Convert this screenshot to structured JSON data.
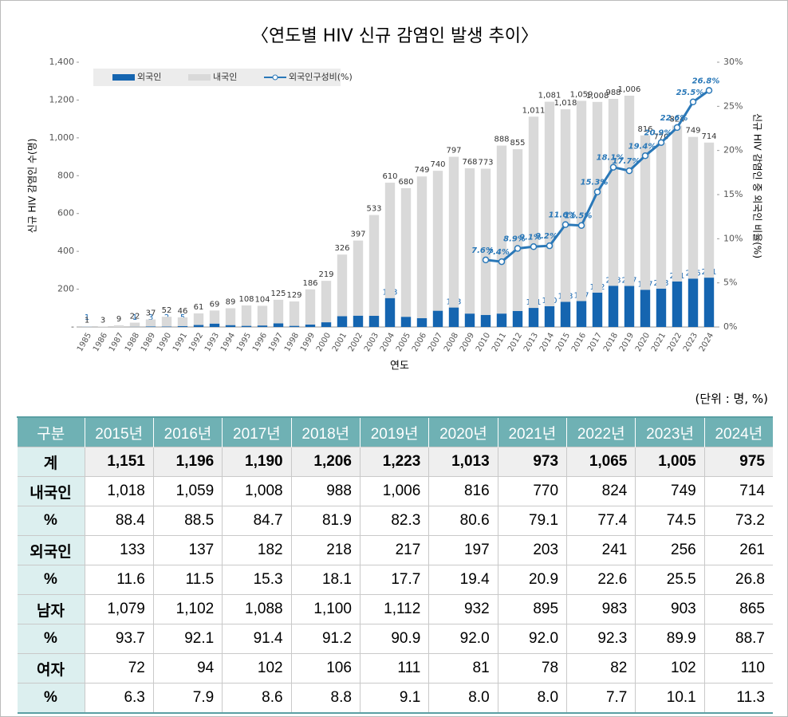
{
  "chart_data": {
    "type": "bar",
    "title": "〈연도별 HIV 신규 감염인 발생 추이〉",
    "x_label": "연도",
    "y_label": "신규 HIV 감염인 수(명)",
    "y2_label": "신규 HIV 감염인 중 외국인 비율(%)",
    "categories": [
      1985,
      1986,
      1987,
      1988,
      1989,
      1990,
      1991,
      1992,
      1993,
      1994,
      1995,
      1996,
      1997,
      1998,
      1999,
      2000,
      2001,
      2002,
      2003,
      2004,
      2005,
      2006,
      2007,
      2008,
      2009,
      2010,
      2011,
      2012,
      2013,
      2014,
      2015,
      2016,
      2017,
      2018,
      2019,
      2020,
      2021,
      2022,
      2023,
      2024
    ],
    "series": [
      {
        "name": "외국인",
        "color": "#1565b0",
        "stacked": true,
        "values": [
          1,
          null,
          null,
          1,
          3,
          2,
          5,
          11,
          18,
          10,
          6,
          8,
          19,
          6,
          13,
          25,
          57,
          60,
          59,
          153,
          54,
          47,
          86,
          103,
          71,
          64,
          71,
          85,
          101,
          110,
          133,
          137,
          182,
          218,
          217,
          197,
          203,
          241,
          256,
          261
        ]
      },
      {
        "name": "내국인",
        "color": "#d9d9d9",
        "stacked": true,
        "values": [
          1,
          3,
          9,
          22,
          37,
          52,
          46,
          61,
          69,
          89,
          108,
          104,
          125,
          129,
          186,
          219,
          326,
          397,
          533,
          610,
          680,
          749,
          740,
          797,
          768,
          773,
          888,
          855,
          1011,
          1081,
          1018,
          1059,
          1008,
          988,
          1006,
          816,
          770,
          824,
          749,
          714
        ],
        "value_labels": [
          "1",
          "3",
          "9",
          "22",
          "37",
          "52",
          "46",
          "61",
          "69",
          "89",
          "108",
          "104",
          "125",
          "129",
          "186",
          "219",
          "326",
          "397",
          "533",
          "610",
          "680",
          "749",
          "740",
          "797",
          "768",
          "773",
          "888",
          "855",
          "1,011",
          "1,081",
          "1,018",
          "1,059",
          "1,008",
          "988",
          "1,006",
          "816",
          "770",
          "824",
          "749",
          "714"
        ]
      },
      {
        "name": "외국인구성비(%)",
        "color": "#2a78b8",
        "type": "line",
        "axis": "y2",
        "values": [
          null,
          null,
          null,
          null,
          null,
          null,
          null,
          null,
          null,
          null,
          null,
          null,
          null,
          null,
          null,
          null,
          null,
          null,
          null,
          null,
          null,
          null,
          null,
          null,
          null,
          7.6,
          7.4,
          8.9,
          9.1,
          9.2,
          11.6,
          11.5,
          15.3,
          18.1,
          17.7,
          19.4,
          20.9,
          22.6,
          25.5,
          26.8
        ],
        "value_labels": [
          null,
          null,
          null,
          null,
          null,
          null,
          null,
          null,
          null,
          null,
          null,
          null,
          null,
          null,
          null,
          null,
          null,
          null,
          null,
          null,
          null,
          null,
          null,
          null,
          null,
          "7.6%",
          "7.4%",
          "8.9%",
          "9.1%",
          "9.2%",
          "11.6%",
          "11.5%",
          "15.3%",
          "18.1%",
          "17.7%",
          "19.4%",
          "20.9%",
          "22.6%",
          "25.5%",
          "26.8%"
        ]
      }
    ],
    "ylim": [
      0,
      1400
    ],
    "yticks": [
      {
        "value": 0,
        "label": "-"
      },
      200,
      400,
      600,
      800,
      {
        "value": 1000,
        "label": "1,000"
      },
      {
        "value": 1200,
        "label": "1,200"
      },
      {
        "value": 1400,
        "label": "1,400"
      }
    ],
    "y2lim": [
      0,
      30
    ],
    "y2ticks": [
      {
        "value": 0,
        "label": "0%"
      },
      {
        "value": 5,
        "label": "5%"
      },
      {
        "value": 10,
        "label": "10%"
      },
      {
        "value": 15,
        "label": "15%"
      },
      {
        "value": 20,
        "label": "20%"
      },
      {
        "value": 25,
        "label": "25%"
      },
      {
        "value": 30,
        "label": "30%"
      }
    ],
    "grid": false,
    "legend": "top-left"
  },
  "table": {
    "unit": "(단위 : 명, %)",
    "header": [
      "구분",
      "2015년",
      "2016년",
      "2017년",
      "2018년",
      "2019년",
      "2020년",
      "2021년",
      "2022년",
      "2023년",
      "2024년"
    ],
    "rows": [
      [
        "계",
        "1,151",
        "1,196",
        "1,190",
        "1,206",
        "1,223",
        "1,013",
        "973",
        "1,065",
        "1,005",
        "975"
      ],
      [
        "내국인",
        "1,018",
        "1,059",
        "1,008",
        "988",
        "1,006",
        "816",
        "770",
        "824",
        "749",
        "714"
      ],
      [
        "%",
        "88.4",
        "88.5",
        "84.7",
        "81.9",
        "82.3",
        "80.6",
        "79.1",
        "77.4",
        "74.5",
        "73.2"
      ],
      [
        "외국인",
        "133",
        "137",
        "182",
        "218",
        "217",
        "197",
        "203",
        "241",
        "256",
        "261"
      ],
      [
        "%",
        "11.6",
        "11.5",
        "15.3",
        "18.1",
        "17.7",
        "19.4",
        "20.9",
        "22.6",
        "25.5",
        "26.8"
      ],
      [
        "남자",
        "1,079",
        "1,102",
        "1,088",
        "1,100",
        "1,112",
        "932",
        "895",
        "983",
        "903",
        "865"
      ],
      [
        "%",
        "93.7",
        "92.1",
        "91.4",
        "91.2",
        "90.9",
        "92.0",
        "92.0",
        "92.3",
        "89.9",
        "88.7"
      ],
      [
        "여자",
        "72",
        "94",
        "102",
        "106",
        "111",
        "81",
        "78",
        "82",
        "102",
        "110"
      ],
      [
        "%",
        "6.3",
        "7.9",
        "8.6",
        "8.8",
        "9.1",
        "8.0",
        "8.0",
        "7.7",
        "10.1",
        "11.3"
      ]
    ]
  }
}
